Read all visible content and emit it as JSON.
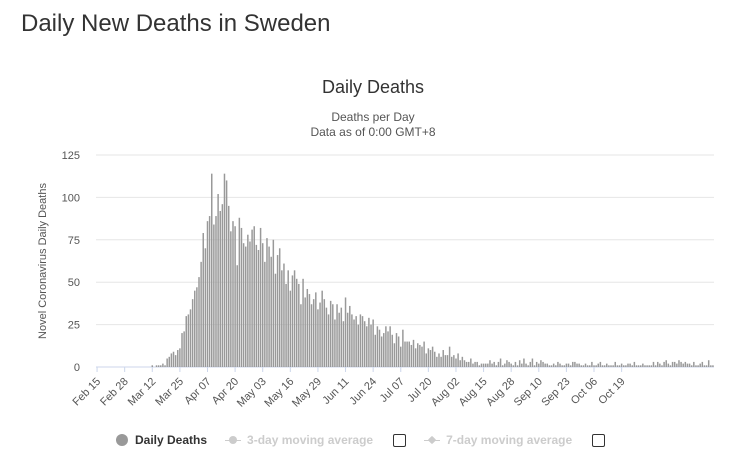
{
  "page": {
    "title": "Daily New Deaths in Sweden"
  },
  "chart_data": {
    "type": "bar",
    "title": "Daily Deaths",
    "subtitle_line1": "Deaths per Day",
    "subtitle_line2": "Data as of 0:00 GMT+8",
    "ylabel": "Novel Coronavirus Daily Deaths",
    "xlabel": "",
    "ylim": [
      0,
      125
    ],
    "yticks": [
      0,
      25,
      50,
      75,
      100,
      125
    ],
    "grid": true,
    "bar_color": "#999999",
    "x_start": "2020-02-15",
    "x_tick_labels": [
      "Feb 15",
      "Feb 28",
      "Mar 12",
      "Mar 25",
      "Apr 07",
      "Apr 20",
      "May 03",
      "May 16",
      "May 29",
      "Jun 11",
      "Jun 24",
      "Jul 07",
      "Jul 20",
      "Aug 02",
      "Aug 15",
      "Aug 28",
      "Sep 10",
      "Sep 23",
      "Oct 06",
      "Oct 19"
    ],
    "x_tick_step_days": 13,
    "series": [
      {
        "name": "Daily Deaths",
        "values": [
          0,
          0,
          0,
          0,
          0,
          0,
          0,
          0,
          0,
          0,
          0,
          0,
          0,
          0,
          0,
          0,
          0,
          0,
          0,
          0,
          0,
          0,
          0,
          0,
          0,
          0,
          1,
          0,
          1,
          1,
          1,
          2,
          1,
          5,
          6,
          8,
          9,
          7,
          10,
          11,
          20,
          21,
          30,
          31,
          34,
          40,
          45,
          47,
          53,
          62,
          79,
          70,
          86,
          89,
          114,
          84,
          89,
          102,
          92,
          96,
          114,
          110,
          95,
          80,
          86,
          83,
          60,
          88,
          82,
          73,
          71,
          78,
          74,
          81,
          83,
          72,
          69,
          82,
          73,
          62,
          76,
          71,
          65,
          75,
          55,
          66,
          70,
          57,
          61,
          49,
          57,
          45,
          54,
          57,
          52,
          49,
          37,
          52,
          41,
          46,
          43,
          37,
          40,
          44,
          34,
          38,
          45,
          40,
          35,
          31,
          39,
          37,
          28,
          37,
          32,
          35,
          27,
          41,
          32,
          36,
          31,
          28,
          30,
          25,
          31,
          30,
          27,
          24,
          29,
          25,
          28,
          19,
          24,
          22,
          18,
          20,
          24,
          21,
          24,
          19,
          14,
          20,
          18,
          12,
          22,
          15,
          15,
          15,
          13,
          16,
          11,
          14,
          13,
          12,
          15,
          8,
          11,
          10,
          12,
          9,
          6,
          8,
          6,
          10,
          7,
          7,
          12,
          6,
          7,
          5,
          8,
          4,
          6,
          4,
          3,
          3,
          5,
          2,
          3,
          3,
          1,
          2,
          2,
          2,
          2,
          4,
          2,
          3,
          1,
          3,
          5,
          1,
          2,
          4,
          3,
          2,
          1,
          3,
          1,
          4,
          2,
          5,
          2,
          1,
          3,
          5,
          1,
          3,
          2,
          4,
          3,
          2,
          2,
          1,
          1,
          2,
          1,
          3,
          2,
          1,
          1,
          2,
          2,
          1,
          3,
          3,
          2,
          2,
          1,
          1,
          2,
          1,
          1,
          3,
          1,
          1,
          2,
          3,
          1,
          1,
          2,
          1,
          1,
          1,
          3,
          1,
          1,
          2,
          1,
          1,
          2,
          2,
          1,
          3,
          1,
          1,
          1,
          2,
          1,
          1,
          1,
          1,
          3,
          1,
          3,
          2,
          1,
          3,
          4,
          2,
          1,
          3,
          3,
          2,
          4,
          3,
          2,
          3,
          2,
          2,
          1,
          3,
          1,
          1,
          2,
          3,
          1,
          1,
          4,
          1,
          1
        ]
      }
    ]
  },
  "legend": {
    "items": [
      {
        "label": "Daily Deaths",
        "active": true
      },
      {
        "label": "3-day moving average",
        "active": false
      },
      {
        "label": "7-day moving average",
        "active": false
      }
    ]
  }
}
